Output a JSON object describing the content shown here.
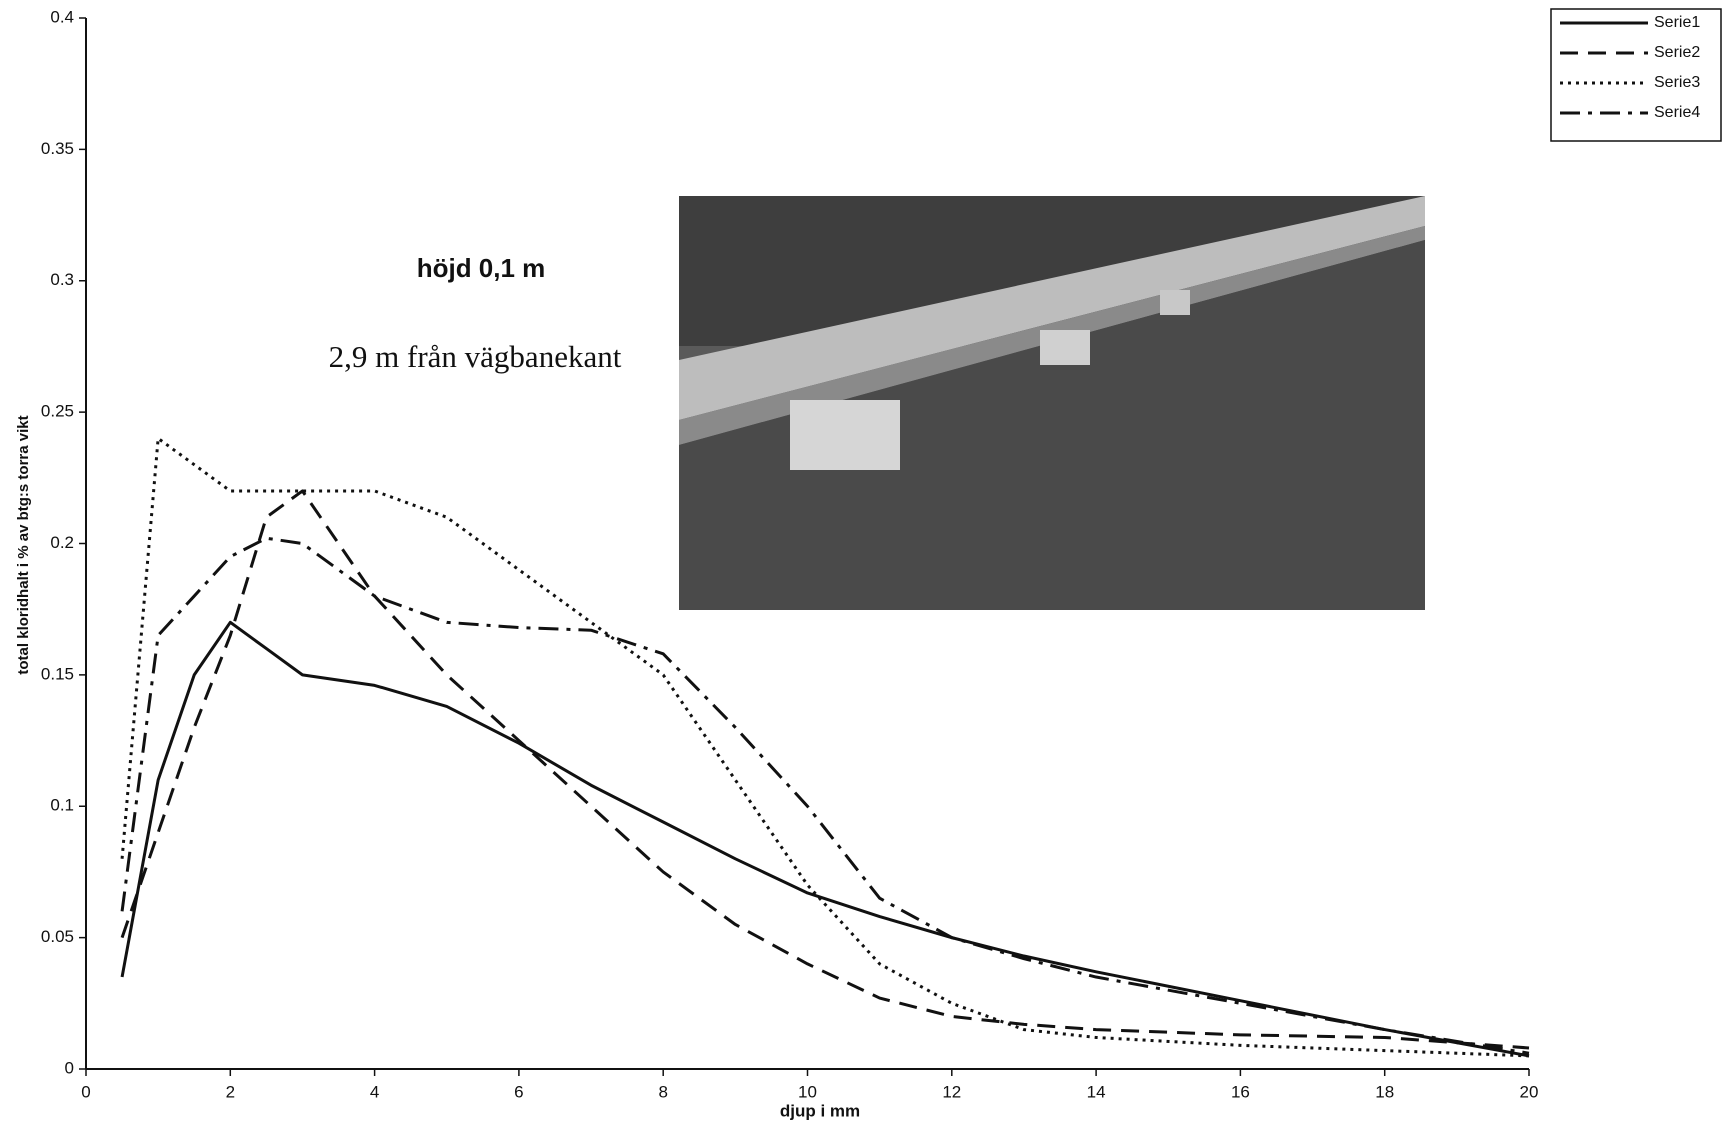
{
  "chart_data": {
    "type": "line",
    "annotations": [
      "höjd 0,1 m",
      "2,9 m från vägbanekant"
    ],
    "x_label": "djup i mm",
    "y_label": "total kloridhalt i % av btg:s torra vikt",
    "x": [
      0.5,
      1,
      1.5,
      2,
      2.5,
      3,
      4,
      5,
      6,
      7,
      8,
      9,
      10,
      11,
      12,
      13,
      14,
      16,
      18,
      20
    ],
    "series": [
      {
        "name": "Serie1",
        "color": "#111111",
        "dash": "none",
        "values": [
          0.035,
          0.11,
          0.15,
          0.17,
          0.16,
          0.15,
          0.146,
          0.138,
          0.124,
          0.108,
          0.094,
          0.08,
          0.067,
          0.058,
          0.05,
          0.043,
          0.037,
          0.026,
          0.015,
          0.005
        ]
      },
      {
        "name": "Serie2",
        "color": "#111111",
        "dash": "18 10",
        "values": [
          0.05,
          0.09,
          0.13,
          0.165,
          0.21,
          0.22,
          0.18,
          0.15,
          0.125,
          0.1,
          0.075,
          0.055,
          0.04,
          0.027,
          0.02,
          0.017,
          0.015,
          0.013,
          0.012,
          0.008
        ]
      },
      {
        "name": "Serie3",
        "color": "#111111",
        "dash": "3 5",
        "values": [
          0.08,
          0.24,
          0.23,
          0.22,
          0.22,
          0.22,
          0.22,
          0.21,
          0.19,
          0.17,
          0.15,
          0.11,
          0.07,
          0.04,
          0.025,
          0.015,
          0.012,
          0.009,
          0.007,
          0.005
        ]
      },
      {
        "name": "Serie4",
        "color": "#111111",
        "dash": "20 8 4 8",
        "values": [
          0.06,
          0.165,
          0.18,
          0.195,
          0.202,
          0.2,
          0.18,
          0.17,
          0.168,
          0.167,
          0.158,
          0.13,
          0.1,
          0.065,
          0.05,
          0.042,
          0.035,
          0.025,
          0.015,
          0.006
        ]
      }
    ],
    "xlim": [
      0,
      20
    ],
    "xticks": [
      0,
      2,
      4,
      6,
      8,
      10,
      12,
      14,
      16,
      18,
      20
    ],
    "ylim": [
      0,
      0.4
    ],
    "yticks": [
      0,
      0.05,
      0.1,
      0.15,
      0.2,
      0.25,
      0.3,
      0.35,
      0.4
    ],
    "grid": false,
    "legend": "top-right"
  }
}
